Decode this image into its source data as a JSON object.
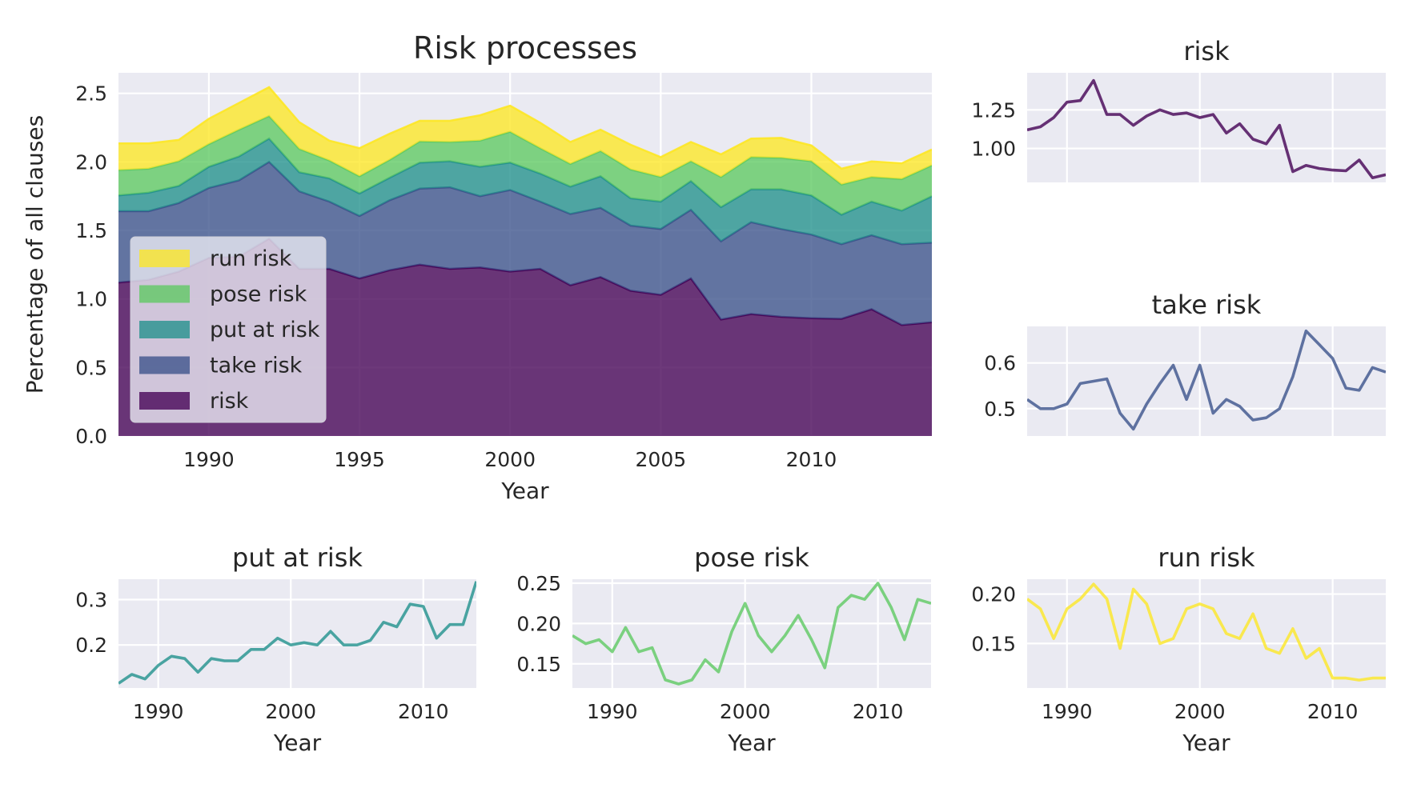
{
  "colors": {
    "risk": "#440154",
    "take_risk": "#3b528b",
    "put_at_risk": "#21918c",
    "pose_risk": "#5ec962",
    "run_risk": "#fde725",
    "panel_bg": "#eaeaf2",
    "grid": "#ffffff"
  },
  "chart_data": [
    {
      "id": "stack",
      "type": "area",
      "title": "Risk processes",
      "xlabel": "Year",
      "ylabel": "Percentage of all clauses",
      "xlim": [
        1987,
        2014
      ],
      "ylim": [
        0,
        2.65
      ],
      "xticks": [
        1990,
        1995,
        2000,
        2005,
        2010
      ],
      "yticks": [
        0.0,
        0.5,
        1.0,
        1.5,
        2.0,
        2.5
      ],
      "ytick_labels": [
        "0.0",
        "0.5",
        "1.0",
        "1.5",
        "2.0",
        "2.5"
      ],
      "stacked": true,
      "legend": {
        "position": "lower-left",
        "order": [
          "run risk",
          "pose risk",
          "put at risk",
          "take risk",
          "risk"
        ]
      },
      "x": [
        1987,
        1988,
        1989,
        1990,
        1991,
        1992,
        1993,
        1994,
        1995,
        1996,
        1997,
        1998,
        1999,
        2000,
        2001,
        2002,
        2003,
        2004,
        2005,
        2006,
        2007,
        2008,
        2009,
        2010,
        2011,
        2012,
        2013,
        2014
      ],
      "series": [
        {
          "name": "risk",
          "color_key": "risk",
          "values": [
            1.12,
            1.14,
            1.2,
            1.3,
            1.31,
            1.44,
            1.22,
            1.22,
            1.15,
            1.21,
            1.25,
            1.22,
            1.23,
            1.2,
            1.22,
            1.1,
            1.16,
            1.06,
            1.03,
            1.15,
            0.85,
            0.89,
            0.87,
            0.86,
            0.855,
            0.925,
            0.81,
            0.83
          ]
        },
        {
          "name": "take risk",
          "color_key": "take_risk",
          "values": [
            0.52,
            0.5,
            0.5,
            0.51,
            0.555,
            0.56,
            0.565,
            0.49,
            0.455,
            0.51,
            0.555,
            0.595,
            0.52,
            0.595,
            0.49,
            0.52,
            0.505,
            0.475,
            0.48,
            0.5,
            0.57,
            0.67,
            0.64,
            0.61,
            0.545,
            0.54,
            0.59,
            0.58
          ]
        },
        {
          "name": "put at risk",
          "color_key": "put_at_risk",
          "values": [
            0.115,
            0.135,
            0.125,
            0.155,
            0.175,
            0.17,
            0.14,
            0.17,
            0.165,
            0.165,
            0.19,
            0.19,
            0.215,
            0.2,
            0.205,
            0.2,
            0.23,
            0.2,
            0.2,
            0.21,
            0.25,
            0.24,
            0.29,
            0.285,
            0.215,
            0.245,
            0.245,
            0.34
          ]
        },
        {
          "name": "pose risk",
          "color_key": "pose_risk",
          "values": [
            0.185,
            0.175,
            0.18,
            0.165,
            0.195,
            0.165,
            0.17,
            0.13,
            0.125,
            0.13,
            0.155,
            0.14,
            0.19,
            0.225,
            0.185,
            0.165,
            0.185,
            0.21,
            0.18,
            0.145,
            0.22,
            0.235,
            0.23,
            0.25,
            0.22,
            0.18,
            0.23,
            0.225
          ]
        },
        {
          "name": "run risk",
          "color_key": "run_risk",
          "values": [
            0.195,
            0.185,
            0.155,
            0.185,
            0.195,
            0.21,
            0.195,
            0.145,
            0.205,
            0.19,
            0.15,
            0.155,
            0.185,
            0.19,
            0.185,
            0.16,
            0.155,
            0.18,
            0.145,
            0.14,
            0.165,
            0.135,
            0.145,
            0.115,
            0.115,
            0.113,
            0.115,
            0.115
          ]
        }
      ]
    },
    {
      "id": "risk",
      "type": "line",
      "title": "risk",
      "series_ref": "risk",
      "color_key": "risk",
      "xlim": [
        1987,
        2014
      ],
      "ylim": [
        0.78,
        1.49
      ],
      "yticks": [
        1.0,
        1.25
      ],
      "ytick_labels": [
        "1.00",
        "1.25"
      ],
      "xticks": [
        1990,
        2000,
        2010
      ],
      "xtick_labels_shown": false,
      "xlabel": ""
    },
    {
      "id": "take",
      "type": "line",
      "title": "take risk",
      "series_ref": "take risk",
      "color_key": "take_risk",
      "xlim": [
        1987,
        2014
      ],
      "ylim": [
        0.44,
        0.68
      ],
      "yticks": [
        0.5,
        0.6
      ],
      "ytick_labels": [
        "0.5",
        "0.6"
      ],
      "xticks": [
        1990,
        2000,
        2010
      ],
      "xtick_labels_shown": false,
      "xlabel": ""
    },
    {
      "id": "put",
      "type": "line",
      "title": "put at risk",
      "series_ref": "put at risk",
      "color_key": "put_at_risk",
      "xlim": [
        1987,
        2014
      ],
      "ylim": [
        0.105,
        0.345
      ],
      "yticks": [
        0.2,
        0.3
      ],
      "ytick_labels": [
        "0.2",
        "0.3"
      ],
      "xticks": [
        1990,
        2000,
        2010
      ],
      "xtick_labels_shown": true,
      "xlabel": "Year"
    },
    {
      "id": "pose",
      "type": "line",
      "title": "pose risk",
      "series_ref": "pose risk",
      "color_key": "pose_risk",
      "xlim": [
        1987,
        2014
      ],
      "ylim": [
        0.12,
        0.255
      ],
      "yticks": [
        0.15,
        0.2,
        0.25
      ],
      "ytick_labels": [
        "0.15",
        "0.20",
        "0.25"
      ],
      "xticks": [
        1990,
        2000,
        2010
      ],
      "xtick_labels_shown": true,
      "xlabel": "Year"
    },
    {
      "id": "run",
      "type": "line",
      "title": "run risk",
      "series_ref": "run risk",
      "color_key": "run_risk",
      "xlim": [
        1987,
        2014
      ],
      "ylim": [
        0.105,
        0.215
      ],
      "yticks": [
        0.15,
        0.2
      ],
      "ytick_labels": [
        "0.15",
        "0.20"
      ],
      "xticks": [
        1990,
        2000,
        2010
      ],
      "xtick_labels_shown": true,
      "xlabel": "Year"
    }
  ]
}
